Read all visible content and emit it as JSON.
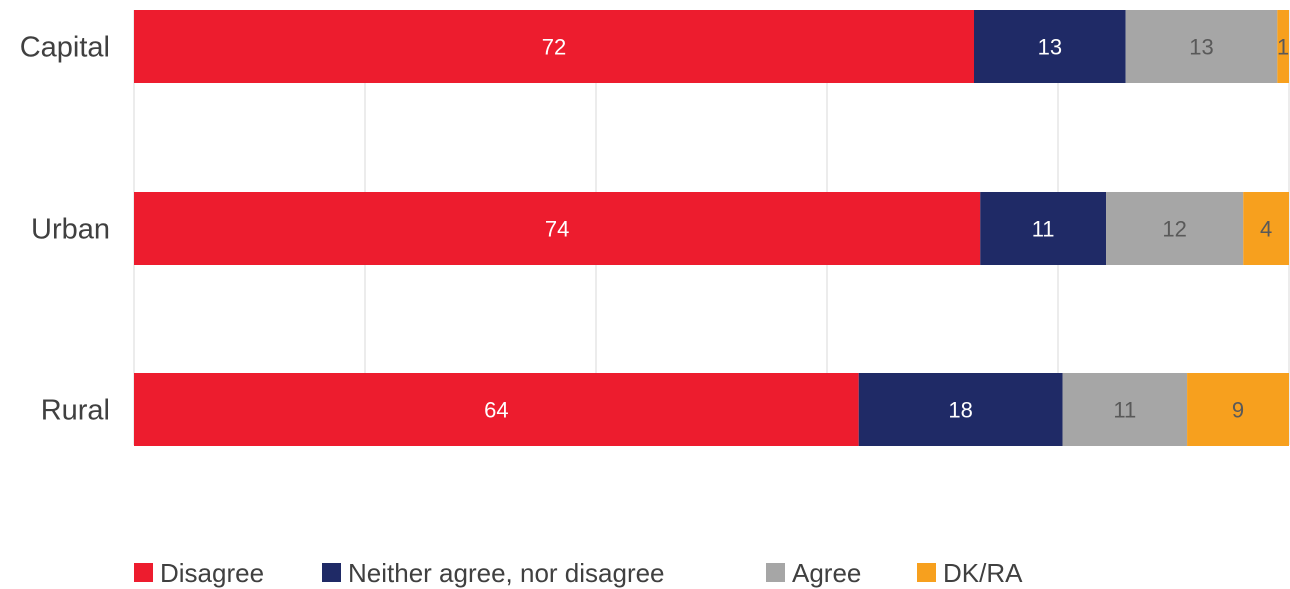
{
  "chart_data": {
    "type": "bar",
    "orientation": "horizontal",
    "stacked": true,
    "categories": [
      "Capital",
      "Urban",
      "Rural"
    ],
    "series": [
      {
        "name": "Disagree",
        "values": [
          72,
          74,
          64
        ],
        "color": "#ED1C2E"
      },
      {
        "name": "Neither agree, nor disagree",
        "values": [
          13,
          11,
          18
        ],
        "color": "#1F2A66"
      },
      {
        "name": "Agree",
        "values": [
          13,
          12,
          11
        ],
        "color": "#A6A6A6"
      },
      {
        "name": "DK/RA",
        "values": [
          1,
          4,
          9
        ],
        "color": "#F7A01E"
      }
    ],
    "label_colors": [
      "#ffffff",
      "#ffffff",
      "#595959",
      "#595959"
    ],
    "xlim": [
      0,
      100
    ],
    "grid": true,
    "legend": "bottom"
  }
}
